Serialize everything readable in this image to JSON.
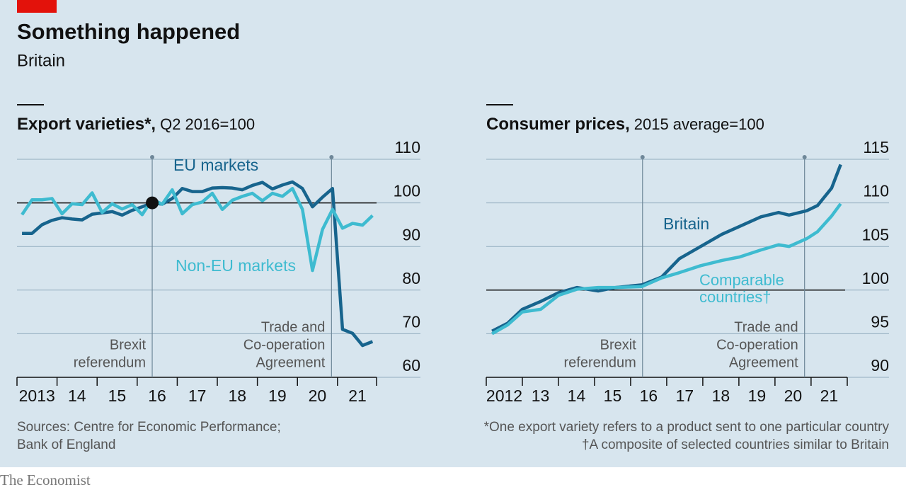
{
  "title": "Something happened",
  "subtitle": "Britain",
  "chart_data": [
    {
      "type": "line",
      "title": "Export varieties*,",
      "subtitle": "Q2 2016=100",
      "x": [
        2013.125,
        2013.375,
        2013.625,
        2013.875,
        2014.125,
        2014.375,
        2014.625,
        2014.875,
        2015.125,
        2015.375,
        2015.625,
        2015.875,
        2016.125,
        2016.375,
        2016.625,
        2016.875,
        2017.125,
        2017.375,
        2017.625,
        2017.875,
        2018.125,
        2018.375,
        2018.625,
        2018.875,
        2019.125,
        2019.375,
        2019.625,
        2019.875,
        2020.125,
        2020.375,
        2020.625,
        2020.875,
        2021.125,
        2021.375,
        2021.625,
        2021.875
      ],
      "series": [
        {
          "name": "EU markets",
          "color": "#17648d",
          "values": [
            93,
            93,
            95,
            96,
            96.6,
            96.3,
            96.1,
            97.4,
            97.7,
            98,
            97.2,
            98.3,
            99.1,
            100,
            99.7,
            101,
            103.3,
            102.6,
            102.6,
            103.4,
            103.5,
            103.4,
            103,
            104,
            104.7,
            103.2,
            104.1,
            104.8,
            103.3,
            99.1,
            101.3,
            103.3,
            71,
            70.1,
            67.3,
            68.2
          ]
        },
        {
          "name": "Non-EU markets",
          "color": "#3ebbd0",
          "values": [
            97.3,
            100.7,
            100.7,
            101,
            97.5,
            99.8,
            99.6,
            102.3,
            97.8,
            99.8,
            98.6,
            99.6,
            97.3,
            100.8,
            99.7,
            103,
            97.5,
            99.6,
            100.2,
            102.2,
            98.5,
            100.6,
            101.5,
            102.2,
            100.5,
            102.2,
            101.5,
            103.3,
            98.5,
            84.5,
            93.9,
            98.5,
            94.2,
            95.3,
            94.9,
            97.1
          ]
        }
      ],
      "highlight_index": 13,
      "xlim": [
        2013,
        2023.07
      ],
      "xticks": [
        {
          "value": 2013,
          "label": "2013"
        },
        {
          "value": 2014,
          "label": "14"
        },
        {
          "value": 2015,
          "label": "15"
        },
        {
          "value": 2016,
          "label": "16"
        },
        {
          "value": 2017,
          "label": "17"
        },
        {
          "value": 2018,
          "label": "18"
        },
        {
          "value": 2019,
          "label": "19"
        },
        {
          "value": 2020,
          "label": "20"
        },
        {
          "value": 2021,
          "label": "21"
        }
      ],
      "ylim": [
        60,
        110
      ],
      "yticks": [
        60,
        70,
        80,
        90,
        100,
        110
      ],
      "reference_line": 100,
      "grid": true,
      "events": [
        {
          "x": 2016.375,
          "lines": [
            "Brexit",
            "referendum"
          ]
        },
        {
          "x": 2020.85,
          "lines": [
            "Trade and",
            "Co-operation",
            "Agreement"
          ]
        }
      ]
    },
    {
      "type": "line",
      "title": "Consumer prices,",
      "subtitle": "2015 average=100",
      "x": [
        2012.16,
        2012.59,
        2013,
        2013.51,
        2014,
        2014.51,
        2015.1,
        2015.59,
        2016.31,
        2016.86,
        2017.35,
        2017.94,
        2018.53,
        2019.02,
        2019.61,
        2020.1,
        2020.39,
        2020.88,
        2021.18,
        2021.57,
        2021.82
      ],
      "series": [
        {
          "name": "Britain",
          "color": "#17648d",
          "values": [
            95.3,
            96.2,
            97.8,
            98.7,
            99.7,
            100.3,
            99.9,
            100.3,
            100.6,
            101.5,
            103.6,
            105,
            106.4,
            107.3,
            108.4,
            108.9,
            108.6,
            109.1,
            109.7,
            111.7,
            114.4
          ]
        },
        {
          "name": "Comparable countries†",
          "color": "#3ebbd0",
          "values": [
            95,
            96,
            97.5,
            97.8,
            99.4,
            100.1,
            100.3,
            100.3,
            100.4,
            101.4,
            102,
            102.8,
            103.4,
            103.8,
            104.6,
            105.2,
            105,
            105.9,
            106.7,
            108.5,
            109.9
          ]
        }
      ],
      "xlim": [
        2012,
        2023.16
      ],
      "xticks": [
        {
          "value": 2012,
          "label": "2012"
        },
        {
          "value": 2013,
          "label": "13"
        },
        {
          "value": 2014,
          "label": "14"
        },
        {
          "value": 2015,
          "label": "15"
        },
        {
          "value": 2016,
          "label": "16"
        },
        {
          "value": 2017,
          "label": "17"
        },
        {
          "value": 2018,
          "label": "18"
        },
        {
          "value": 2019,
          "label": "19"
        },
        {
          "value": 2020,
          "label": "20"
        },
        {
          "value": 2021,
          "label": "21"
        }
      ],
      "ylim": [
        90,
        115
      ],
      "yticks": [
        90,
        95,
        100,
        105,
        110,
        115
      ],
      "reference_line": 100,
      "grid": true,
      "events": [
        {
          "x": 2016.33,
          "lines": [
            "Brexit",
            "referendum"
          ]
        },
        {
          "x": 2020.82,
          "lines": [
            "Trade and",
            "Co-operation",
            "Agreement"
          ]
        }
      ]
    }
  ],
  "sources": [
    "Sources: Centre for Economic Performance;",
    "Bank of England"
  ],
  "footnotes": [
    "*One export variety refers to a product sent to one particular country",
    "†A composite of selected countries similar to Britain"
  ],
  "brand": "The Economist"
}
